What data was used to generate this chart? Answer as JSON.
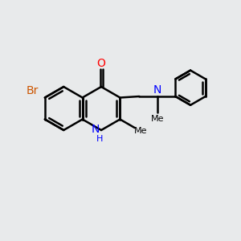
{
  "background_color": "#e8eaeb",
  "bond_color": "#000000",
  "bond_width": 1.8,
  "figsize": [
    3.0,
    3.0
  ],
  "dpi": 100,
  "xlim": [
    0,
    10
  ],
  "ylim": [
    0,
    10
  ]
}
